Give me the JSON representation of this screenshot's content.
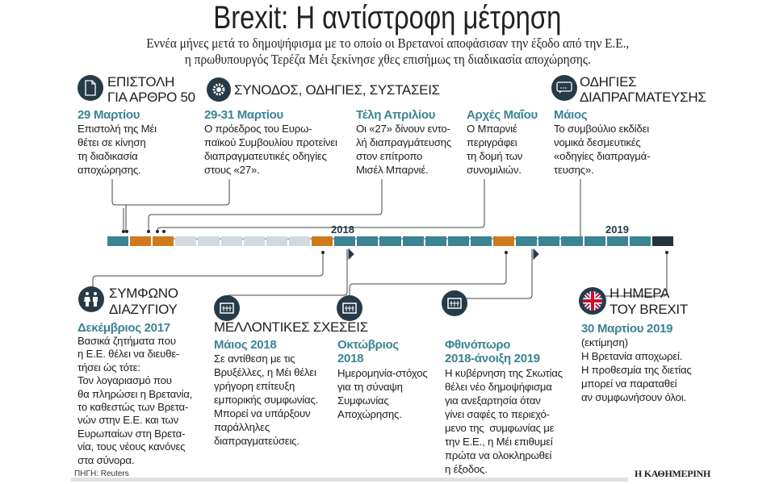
{
  "title": "Brexit: Η αντίστροφη μέτρηση",
  "subtitle": [
    "Εννέα μήνες μετά το δημοψήφισμα με το οποίο οι Βρετανοί αποφάσισαν την έξοδο από την Ε.Ε.,",
    "η πρωθυπουργός Τερέζα Μέι ξεκίνησε χθες επισήμως τη διαδικασία αποχώρησης."
  ],
  "colors": {
    "accent": "#3a8494",
    "past": "#3a8494",
    "event": "#d07a1e",
    "pending": "#d0dae0",
    "brexit": "#25333d",
    "icon": "#263a47"
  },
  "top": {
    "letter": {
      "icon": "document-icon",
      "heading": [
        "ΕΠΙΣΤΟΛΗ",
        "ΓΙΑ ΑΡΘΡΟ 50"
      ],
      "date": "29 Μαρτίου",
      "body": "Επιστολή της Μέι\nθέτει σε κίνηση\nτη διαδικασία\nαποχώρησης."
    },
    "summit_heading": {
      "icon": "gear-icon",
      "heading": "ΣΥΝΟΔΟΣ, ΟΔΗΓΙΕΣ, ΣΥΣΤΑΣΕΙΣ"
    },
    "summit": {
      "date": "29-31 Μαρτίου",
      "body": "Ο πρόεδρος του Ευρω-\nπαϊκού Συμβουλίου προτείνει\nδιαπραγματευτικές οδηγίες\nστους «27»."
    },
    "april": {
      "date": "Τέλη Απριλίου",
      "body": "Οι «27» δίνουν εντο-\nλή διαπραγμάτευσης\nστον επίτροπο\nΜισέλ Μπαρνιέ."
    },
    "early_may": {
      "date": "Αρχές Μαΐου",
      "body": "Ο Μπαρνιέ\nπεριγράφει\nτη δομή των\nσυνομιλιών."
    },
    "guidelines": {
      "icon": "speech-bubble-icon",
      "heading": [
        "ΟΔΗΓΙΕΣ",
        "ΔΙΑΠΡΑΓΜΑΤΕΥΣΗΣ"
      ],
      "date": "Μάιος",
      "body": "Το συμβούλιο εκδίδει\nνομικά δεσμευτικές\n«οδηγίες διαπραγμά-\nτευσης»."
    }
  },
  "timeline": {
    "years": [
      "2018",
      "2019"
    ],
    "segments": [
      "past",
      "event",
      "event",
      "pending",
      "pending",
      "pending",
      "pending",
      "pending",
      "pending",
      "event",
      "past",
      "past",
      "past",
      "past",
      "past",
      "past",
      "past",
      "event",
      "past",
      "past",
      "past",
      "past",
      "past",
      "past",
      "brexit"
    ]
  },
  "bottom": {
    "divorce": {
      "icon": "couple-icon",
      "heading": [
        "ΣΥΜΦΩΝΟ",
        "ΔΙΑΖΥΓΙΟΥ"
      ],
      "date": "Δεκέμβριος 2017",
      "body": "Βασικά ζητήματα που\nη Ε.Ε. θέλει να διευθε-\nτήσει ώς τότε:\nΤον λογαριασμό που\nθα πληρώσει η Βρετανία,\nτο καθεστώς των Βρετα-\nνών στην Ε.Ε. και των\nΕυρωπαίων στη Βρετα-\nνία, τους νέους κανόνες\nστα σύνορα."
    },
    "future_heading": "ΜΕΛΛΟΝΤΙΚΕΣ ΣΧΕΣΕΙΣ",
    "may2018": {
      "icon": "building-icon",
      "date": "Μάιος 2018",
      "body": "Σε αντίθεση με τις\nΒρυξέλλες, η Μέι θέλει\nγρήγορη επίτευξη\nεμπορικής συμφωνίας.\nΜπορεί να υπάρξουν\nπαράλληλες\nδιαπραγματεύσεις."
    },
    "oct2018": {
      "icon": "building-icon",
      "date": [
        "Οκτώβριος",
        "2018"
      ],
      "body": "Ημερομηνία-στόχος\nγια τη σύναψη\nΣυμφωνίας\nΑποχώρησης."
    },
    "autumn": {
      "icon": "building-icon",
      "date": [
        "Φθινόπωρο",
        "2018-άνοιξη 2019"
      ],
      "body": "Η κυβέρνηση της Σκωτίας\nθέλει νέο δημοψήφισμα\nγια ανεξαρτησία όταν\nγίνει σαφές το περιεχό-\nμενο της  συμφωνίας με\nτην Ε.Ε., η Μέι επιθυμεί\nπρώτα να ολοκληρωθεί\nη έξοδος."
    },
    "brexit": {
      "icon": "uk-flag-icon",
      "heading": [
        "Η ΗΜΕΡΑ",
        "ΤΟΥ BREXIT"
      ],
      "date": "30 Μαρτίου 2019",
      "body": "(εκτίμηση)\nΗ Βρετανία αποχωρεί.\nΗ προθεσμία της διετίας\nμπορεί να παραταθεί\nαν συμφωνήσουν όλοι."
    }
  },
  "source": "ΠΗΓΗ: Reuters",
  "brand": "Η ΚΑΘΗΜΕΡΙΝΗ"
}
